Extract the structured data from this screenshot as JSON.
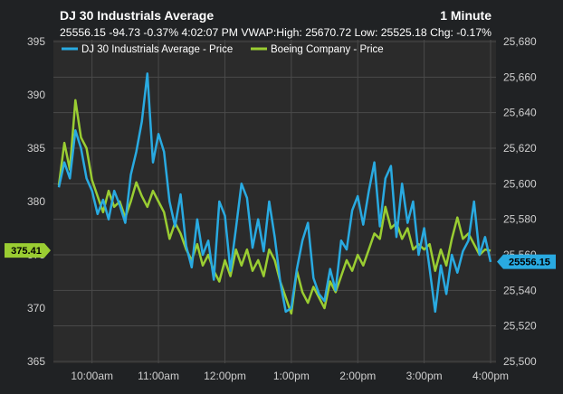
{
  "header": {
    "title": "DJ 30 Industrials Average",
    "interval": "1 Minute",
    "quote_line": "25556.15 -94.73 -0.37% 4:02:07 PM VWAP:High: 25670.72 Low: 25525.18 Chg: -0.17%"
  },
  "colors": {
    "background": "#202224",
    "plot_background": "#2b2b2b",
    "grid": "#4a4a4a",
    "dj30": "#29aae1",
    "boeing": "#9acd32"
  },
  "chart_data": {
    "type": "line",
    "title": "DJ 30 Industrials Average",
    "x_labels": [
      "10:00am",
      "11:00am",
      "12:00pm",
      "1:00pm",
      "2:00pm",
      "3:00pm",
      "4:00pm"
    ],
    "x_range": [
      "9:30am",
      "4:00pm"
    ],
    "left_axis": {
      "ticks": [
        "365",
        "370",
        "375",
        "380",
        "385",
        "390",
        "395"
      ],
      "range": [
        365,
        395
      ]
    },
    "right_axis": {
      "ticks": [
        "25,500",
        "25,520",
        "25,540",
        "25,560",
        "25,580",
        "25,600",
        "25,620",
        "25,640",
        "25,660",
        "25,680"
      ],
      "range": [
        25500,
        25680
      ]
    },
    "grid": true,
    "legend_position": "top-left",
    "series": [
      {
        "name": "DJ 30 Industrials Average - Price",
        "axis": "right",
        "color": "#29aae1",
        "last_value_label": "25556.15",
        "last_value": 25556.15,
        "x": [
          "9:30",
          "9:35",
          "9:40",
          "9:45",
          "9:50",
          "9:55",
          "10:00",
          "10:05",
          "10:10",
          "10:15",
          "10:20",
          "10:25",
          "10:30",
          "10:35",
          "10:40",
          "10:45",
          "10:50",
          "10:55",
          "11:00",
          "11:05",
          "11:10",
          "11:15",
          "11:20",
          "11:25",
          "11:30",
          "11:35",
          "11:40",
          "11:45",
          "11:50",
          "11:55",
          "12:00",
          "12:05",
          "12:10",
          "12:15",
          "12:20",
          "12:25",
          "12:30",
          "12:35",
          "12:40",
          "12:45",
          "12:50",
          "12:55",
          "13:00",
          "13:05",
          "13:10",
          "13:15",
          "13:20",
          "13:25",
          "13:30",
          "13:35",
          "13:40",
          "13:45",
          "13:50",
          "13:55",
          "14:00",
          "14:05",
          "14:10",
          "14:15",
          "14:20",
          "14:25",
          "14:30",
          "14:35",
          "14:40",
          "14:45",
          "14:50",
          "14:55",
          "15:00",
          "15:05",
          "15:10",
          "15:15",
          "15:20",
          "15:25",
          "15:30",
          "15:35",
          "15:40",
          "15:45",
          "15:50",
          "15:55",
          "16:00"
        ],
        "values": [
          25598,
          25612,
          25603,
          25630,
          25620,
          25603,
          25596,
          25583,
          25591,
          25580,
          25596,
          25588,
          25578,
          25605,
          25618,
          25635,
          25662,
          25612,
          25628,
          25618,
          25590,
          25576,
          25594,
          25565,
          25553,
          25580,
          25560,
          25568,
          25546,
          25590,
          25582,
          25551,
          25575,
          25600,
          25592,
          25564,
          25580,
          25562,
          25590,
          25570,
          25545,
          25528,
          25530,
          25552,
          25568,
          25578,
          25547,
          25538,
          25534,
          25552,
          25540,
          25568,
          25563,
          25585,
          25593,
          25577,
          25596,
          25612,
          25576,
          25603,
          25610,
          25570,
          25600,
          25578,
          25590,
          25560,
          25575,
          25552,
          25528,
          25554,
          25538,
          25560,
          25550,
          25562,
          25568,
          25590,
          25560,
          25570,
          25556
        ]
      },
      {
        "name": "Boeing Company - Price",
        "axis": "left",
        "color": "#9acd32",
        "last_value_label": "375.41",
        "last_value": 375.41,
        "x": [
          "9:30",
          "9:35",
          "9:40",
          "9:45",
          "9:50",
          "9:55",
          "10:00",
          "10:05",
          "10:10",
          "10:15",
          "10:20",
          "10:25",
          "10:30",
          "10:35",
          "10:40",
          "10:45",
          "10:50",
          "10:55",
          "11:00",
          "11:05",
          "11:10",
          "11:15",
          "11:20",
          "11:25",
          "11:30",
          "11:35",
          "11:40",
          "11:45",
          "11:50",
          "11:55",
          "12:00",
          "12:05",
          "12:10",
          "12:15",
          "12:20",
          "12:25",
          "12:30",
          "12:35",
          "12:40",
          "12:45",
          "12:50",
          "12:55",
          "13:00",
          "13:05",
          "13:10",
          "13:15",
          "13:20",
          "13:25",
          "13:30",
          "13:35",
          "13:40",
          "13:45",
          "13:50",
          "13:55",
          "14:00",
          "14:05",
          "14:10",
          "14:15",
          "14:20",
          "14:25",
          "14:30",
          "14:35",
          "14:40",
          "14:45",
          "14:50",
          "14:55",
          "15:00",
          "15:05",
          "15:10",
          "15:15",
          "15:20",
          "15:25",
          "15:30",
          "15:35",
          "15:40",
          "15:45",
          "15:50",
          "15:55",
          "16:00"
        ],
        "values": [
          381.5,
          385.5,
          383.0,
          389.5,
          386.0,
          385.0,
          382.0,
          380.5,
          379.0,
          381.0,
          379.5,
          380.0,
          378.5,
          380.0,
          381.8,
          380.5,
          379.5,
          381.0,
          380.0,
          379.0,
          376.5,
          378.0,
          377.0,
          375.5,
          374.5,
          376.0,
          374.0,
          375.0,
          373.5,
          372.5,
          374.5,
          373.0,
          375.5,
          374.0,
          375.5,
          373.5,
          374.5,
          373.0,
          375.5,
          374.5,
          372.5,
          371.0,
          369.5,
          373.5,
          371.5,
          370.5,
          372.0,
          371.0,
          370.0,
          372.5,
          371.5,
          373.0,
          374.5,
          373.5,
          375.0,
          374.0,
          375.5,
          377.0,
          376.5,
          379.5,
          377.5,
          378.0,
          376.5,
          377.5,
          375.5,
          376.0,
          375.5,
          376.0,
          373.5,
          375.5,
          374.0,
          376.5,
          378.5,
          376.5,
          377.0,
          376.0,
          375.0,
          375.5,
          375.4
        ]
      }
    ]
  }
}
